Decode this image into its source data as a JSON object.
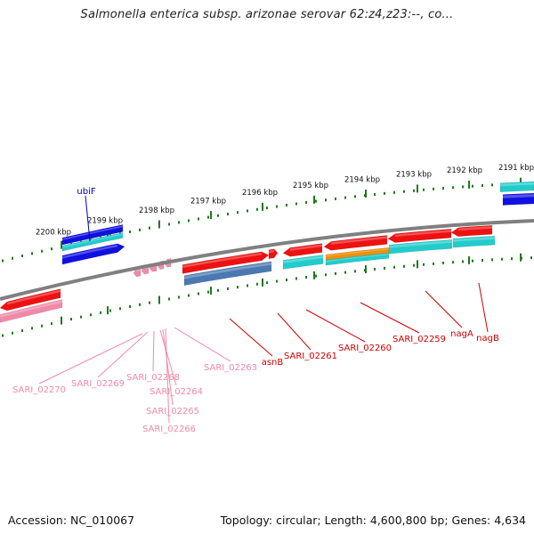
{
  "title": "Salmonella enterica subsp. arizonae serovar 62:z4,z23:--, co...",
  "footer": {
    "accession": "Accession: NC_010067",
    "topology": "Topology: circular; Length: 4,600,800 bp; Genes: 4,634"
  },
  "scale": {
    "tick_labels": [
      "2200 kbp",
      "2199 kbp",
      "2198 kbp",
      "2197 kbp",
      "2196 kbp",
      "2195 kbp",
      "2194 kbp",
      "2193 kbp",
      "2192 kbp",
      "2191 kbp"
    ]
  },
  "colors": {
    "tick_green": "#1e7a1e",
    "backbone": "#808080",
    "gene_red": "#ee1111",
    "gene_pink": "#f08aa8",
    "gene_cyan": "#22cccc",
    "gene_blue": "#1010e0",
    "gene_steel": "#4a78b0",
    "gene_orange": "#f0900a",
    "label_red": "#cc0000",
    "label_pink": "#f08aa8",
    "label_blue": "#0000bb"
  },
  "gene_labels": {
    "top": [
      {
        "text": "ubiF",
        "color": "label_blue"
      }
    ],
    "bottom": [
      {
        "text": "SARI_02270",
        "color": "label_pink"
      },
      {
        "text": "SARI_02269",
        "color": "label_pink"
      },
      {
        "text": "SARI_02268",
        "color": "label_pink"
      },
      {
        "text": "SARI_02264",
        "color": "label_pink"
      },
      {
        "text": "SARI_02265",
        "color": "label_pink"
      },
      {
        "text": "SARI_02266",
        "color": "label_pink"
      },
      {
        "text": "SARI_02263",
        "color": "label_pink"
      },
      {
        "text": "asnB",
        "color": "label_red"
      },
      {
        "text": "SARI_02261",
        "color": "label_red"
      },
      {
        "text": "SARI_02260",
        "color": "label_red"
      },
      {
        "text": "SARI_02259",
        "color": "label_red"
      },
      {
        "text": "nagA",
        "color": "label_red"
      },
      {
        "text": "nagB",
        "color": "label_red"
      }
    ]
  }
}
